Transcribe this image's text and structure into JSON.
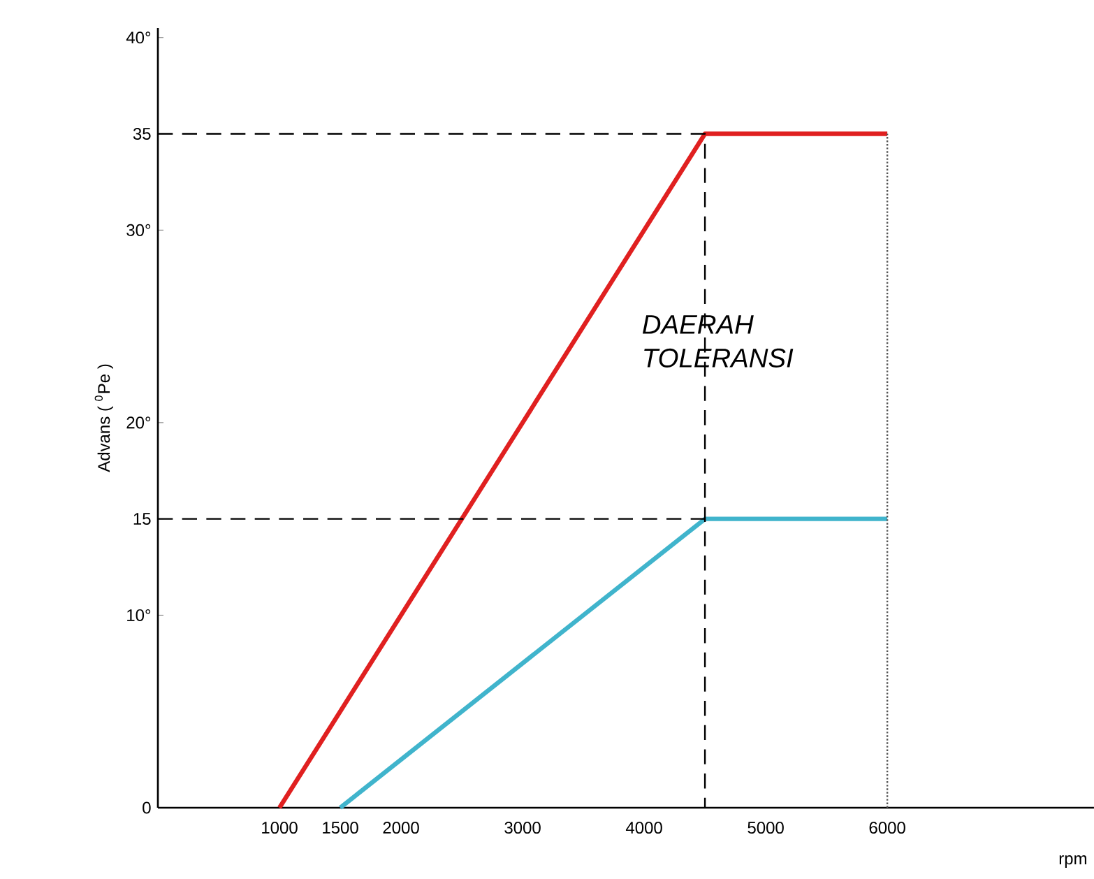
{
  "chart_data": {
    "type": "line",
    "ylabel": "Advans ( $^{0}$Pe )",
    "xlabel": "rpm",
    "xlim": [
      0,
      7700
    ],
    "ylim": [
      0,
      40.5
    ],
    "xticks": [
      1000,
      1500,
      2000,
      3000,
      4000,
      5000,
      6000
    ],
    "yticks": [
      {
        "value": 0,
        "label": "0"
      },
      {
        "value": 10,
        "label": "10°"
      },
      {
        "value": 15,
        "label": "15"
      },
      {
        "value": 20,
        "label": "20°"
      },
      {
        "value": 30,
        "label": "30°"
      },
      {
        "value": 35,
        "label": "35"
      },
      {
        "value": 40,
        "label": "40°"
      }
    ],
    "series": [
      {
        "color": "#e02020",
        "x": [
          1000,
          4500,
          6000
        ],
        "values": [
          0,
          35,
          35
        ]
      },
      {
        "color": "#40b4cc",
        "x": [
          1500,
          4500,
          6000
        ],
        "values": [
          0,
          15,
          15
        ]
      },
      {
        "color": "#000000",
        "line_style": "dashed",
        "x": [
          0,
          4500,
          4500
        ],
        "values": [
          35,
          35,
          0
        ]
      },
      {
        "color": "#000000",
        "line_style": "dashed",
        "x": [
          0,
          4500
        ],
        "values": [
          15,
          15
        ]
      },
      {
        "color": "#555555",
        "line_style": "dotted",
        "x": [
          6000,
          6000
        ],
        "values": [
          0,
          35
        ]
      }
    ],
    "annotations": [
      "DAERAH TOLERANSI"
    ]
  }
}
